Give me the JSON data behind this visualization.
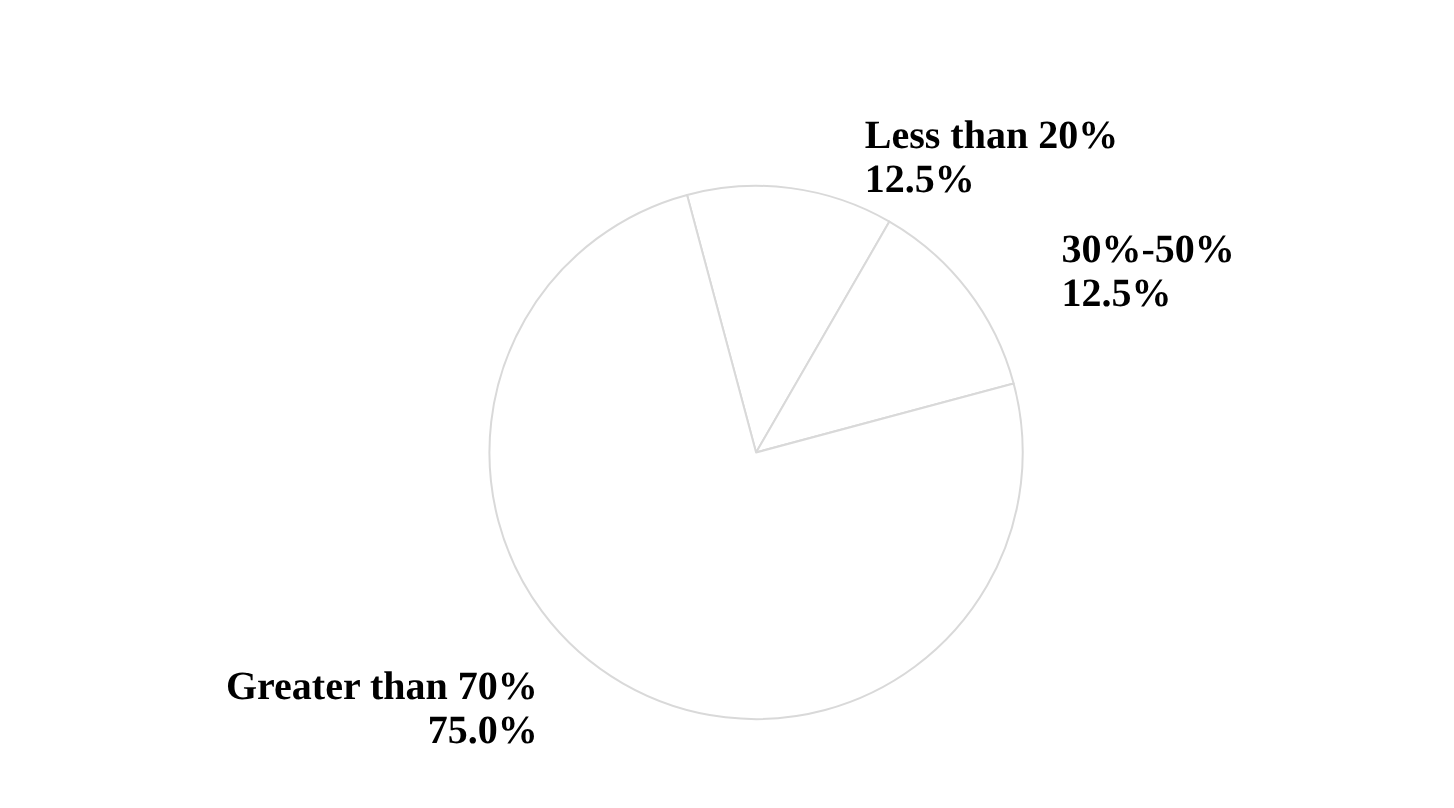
{
  "chart_data": {
    "type": "pie",
    "categories": [
      "Less than 20%",
      "30%-50%",
      "Greater than 70%"
    ],
    "values": [
      12.5,
      12.5,
      75.0
    ],
    "value_labels": [
      "12.5%",
      "12.5%",
      "75.0%"
    ],
    "colors": [
      "#ffffff",
      "#ffffff",
      "#ffffff"
    ],
    "legend": false
  }
}
